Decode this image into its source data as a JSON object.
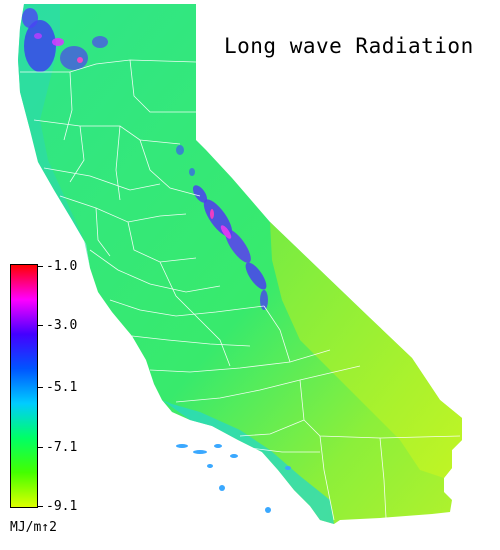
{
  "map": {
    "title": "Long wave Radiation",
    "region": "California",
    "colors": {
      "background": "#ffffff",
      "base_fill": "#33e878",
      "desert_fill": "#a6f036",
      "coast_fill": "#2fd9a8",
      "mountain_fill": "#5a3df2",
      "peak_fill": "#d63cff",
      "border_line": "#ffffff",
      "island_fill": "#3aa8ff"
    }
  },
  "legend": {
    "units": "MJ/m↑2",
    "ticks": [
      {
        "label": "-1.0",
        "value": -1.0
      },
      {
        "label": "-3.0",
        "value": -3.0
      },
      {
        "label": "-5.1",
        "value": -5.1
      },
      {
        "label": "-7.1",
        "value": -7.1
      },
      {
        "label": "-9.1",
        "value": -9.1
      }
    ],
    "range": [
      -9.1,
      -1.0
    ],
    "gradient_colors": [
      "#ff0000",
      "#ff00ff",
      "#4400ff",
      "#0055ff",
      "#00ccff",
      "#00ff66",
      "#44ff00",
      "#ddff00"
    ]
  }
}
